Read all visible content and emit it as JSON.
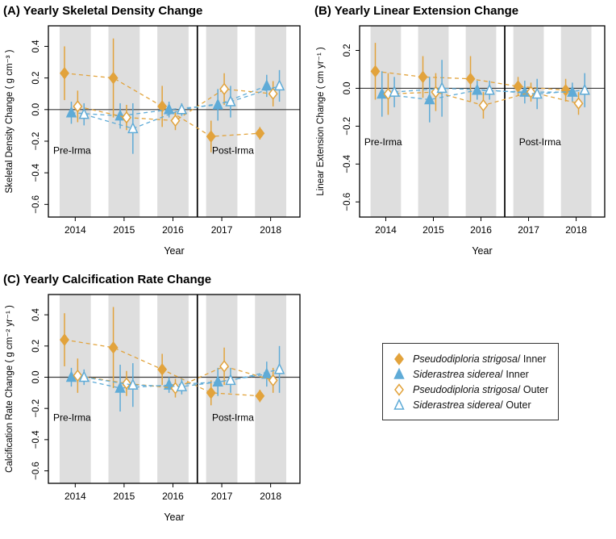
{
  "colors": {
    "orange": "#E2A33C",
    "blue": "#5FABD7",
    "band": "#DEDEDE",
    "zero_line": "#3A3A3A",
    "divider": "#000000",
    "box": "#000000"
  },
  "legend": {
    "items": [
      {
        "species": "Pseudodiploria strigosa",
        "group": "/ Inner",
        "shape": "diamond",
        "filled": true,
        "color": "#E2A33C"
      },
      {
        "species": "Siderastrea siderea",
        "group": "/ Inner",
        "shape": "triangle",
        "filled": true,
        "color": "#5FABD7"
      },
      {
        "species": "Pseudodiploria strigosa",
        "group": "/ Outer",
        "shape": "diamond",
        "filled": false,
        "color": "#E2A33C"
      },
      {
        "species": "Siderastrea siderea",
        "group": "/ Outer",
        "shape": "triangle",
        "filled": false,
        "color": "#5FABD7"
      }
    ]
  },
  "chart_data": [
    {
      "type": "scatter",
      "panel": "A",
      "title": "(A) Yearly Skeletal Density Change",
      "xlabel": "Year",
      "ylabel": "Skeletal Density Change ( g cm⁻³ )",
      "x_categories": [
        2014,
        2015,
        2016,
        2017,
        2018
      ],
      "xlim": [
        2013.45,
        2018.6
      ],
      "ylim": [
        -0.68,
        0.53
      ],
      "yticks": [
        -0.6,
        -0.4,
        -0.2,
        0.0,
        0.2,
        0.4
      ],
      "divider_x": 2016.5,
      "band_half_width": 0.32,
      "grid": false,
      "annotations": [
        {
          "text": "Pre-Irma",
          "x": 2013.55,
          "y": -0.28
        },
        {
          "text": "Post-Irma",
          "x": 2016.8,
          "y": -0.28
        }
      ],
      "series": [
        {
          "name": "Pseudodiploria strigosa/ Inner",
          "shape": "diamond",
          "filled": true,
          "color": "#E2A33C",
          "offset": -0.22,
          "values": [
            0.23,
            0.2,
            0.02,
            -0.17,
            -0.15
          ],
          "errors": [
            0.17,
            0.25,
            0.13,
            0.1,
            0.04
          ]
        },
        {
          "name": "Siderastrea siderea/ Inner",
          "shape": "triangle",
          "filled": true,
          "color": "#5FABD7",
          "offset": -0.08,
          "values": [
            -0.02,
            -0.04,
            0.0,
            0.03,
            0.15
          ],
          "errors": [
            0.07,
            0.08,
            0.05,
            0.1,
            0.07
          ]
        },
        {
          "name": "Pseudodiploria strigosa/ Outer",
          "shape": "diamond",
          "filled": false,
          "color": "#E2A33C",
          "offset": 0.05,
          "values": [
            0.02,
            -0.05,
            -0.07,
            0.13,
            0.1
          ],
          "errors": [
            0.1,
            0.08,
            0.06,
            0.1,
            0.08
          ]
        },
        {
          "name": "Siderastrea siderea/ Outer",
          "shape": "triangle",
          "filled": false,
          "color": "#5FABD7",
          "offset": 0.18,
          "values": [
            -0.03,
            -0.12,
            0.0,
            0.05,
            0.15
          ],
          "errors": [
            0.07,
            0.16,
            0.04,
            0.1,
            0.1
          ]
        }
      ]
    },
    {
      "type": "scatter",
      "panel": "B",
      "title": "(B) Yearly Linear Extension Change",
      "xlabel": "Year",
      "ylabel": "Linear Extension Change ( cm yr⁻¹ )",
      "x_categories": [
        2014,
        2015,
        2016,
        2017,
        2018
      ],
      "xlim": [
        2013.45,
        2018.6
      ],
      "ylim": [
        -0.68,
        0.33
      ],
      "yticks": [
        -0.6,
        -0.4,
        -0.2,
        0.0,
        0.2
      ],
      "divider_x": 2016.5,
      "band_half_width": 0.32,
      "grid": false,
      "annotations": [
        {
          "text": "Pre-Irma",
          "x": 2013.55,
          "y": -0.3
        },
        {
          "text": "Post-Irma",
          "x": 2016.8,
          "y": -0.3
        }
      ],
      "series": [
        {
          "name": "Pseudodiploria strigosa/ Inner",
          "shape": "diamond",
          "filled": true,
          "color": "#E2A33C",
          "offset": -0.22,
          "values": [
            0.09,
            0.06,
            0.05,
            0.01,
            -0.01
          ],
          "errors": [
            0.15,
            0.11,
            0.12,
            0.05,
            0.06
          ]
        },
        {
          "name": "Siderastrea siderea/ Inner",
          "shape": "triangle",
          "filled": true,
          "color": "#5FABD7",
          "offset": -0.08,
          "values": [
            -0.03,
            -0.06,
            -0.01,
            -0.02,
            -0.02
          ],
          "errors": [
            0.12,
            0.12,
            0.05,
            0.06,
            0.05
          ]
        },
        {
          "name": "Pseudodiploria strigosa/ Outer",
          "shape": "diamond",
          "filled": false,
          "color": "#E2A33C",
          "offset": 0.05,
          "values": [
            -0.03,
            -0.02,
            -0.09,
            -0.02,
            -0.08
          ],
          "errors": [
            0.11,
            0.1,
            0.07,
            0.05,
            0.06
          ]
        },
        {
          "name": "Siderastrea siderea/ Outer",
          "shape": "triangle",
          "filled": false,
          "color": "#5FABD7",
          "offset": 0.18,
          "values": [
            -0.02,
            0.0,
            -0.01,
            -0.03,
            -0.01
          ],
          "errors": [
            0.08,
            0.15,
            0.05,
            0.08,
            0.09
          ]
        }
      ]
    },
    {
      "type": "scatter",
      "panel": "C",
      "title": "(C) Yearly Calcification Rate Change",
      "xlabel": "Year",
      "ylabel": "Calcification Rate Change ( g cm⁻² yr⁻¹ )",
      "x_categories": [
        2014,
        2015,
        2016,
        2017,
        2018
      ],
      "xlim": [
        2013.45,
        2018.6
      ],
      "ylim": [
        -0.68,
        0.53
      ],
      "yticks": [
        -0.6,
        -0.4,
        -0.2,
        0.0,
        0.2,
        0.4
      ],
      "divider_x": 2016.5,
      "band_half_width": 0.32,
      "grid": false,
      "annotations": [
        {
          "text": "Pre-Irma",
          "x": 2013.55,
          "y": -0.28
        },
        {
          "text": "Post-Irma",
          "x": 2016.8,
          "y": -0.28
        }
      ],
      "series": [
        {
          "name": "Pseudodiploria strigosa/ Inner",
          "shape": "diamond",
          "filled": true,
          "color": "#E2A33C",
          "offset": -0.22,
          "values": [
            0.24,
            0.19,
            0.05,
            -0.1,
            -0.12
          ],
          "errors": [
            0.17,
            0.26,
            0.1,
            0.08,
            0.04
          ]
        },
        {
          "name": "Siderastrea siderea/ Inner",
          "shape": "triangle",
          "filled": true,
          "color": "#5FABD7",
          "offset": -0.08,
          "values": [
            0.0,
            -0.07,
            -0.05,
            -0.03,
            0.02
          ],
          "errors": [
            0.06,
            0.15,
            0.05,
            0.09,
            0.08
          ]
        },
        {
          "name": "Pseudodiploria strigosa/ Outer",
          "shape": "diamond",
          "filled": false,
          "color": "#E2A33C",
          "offset": 0.05,
          "values": [
            0.01,
            -0.04,
            -0.07,
            0.07,
            -0.02
          ],
          "errors": [
            0.11,
            0.08,
            0.06,
            0.12,
            0.08
          ]
        },
        {
          "name": "Siderastrea siderea/ Outer",
          "shape": "triangle",
          "filled": false,
          "color": "#5FABD7",
          "offset": 0.18,
          "values": [
            0.0,
            -0.05,
            -0.06,
            -0.02,
            0.05
          ],
          "errors": [
            0.05,
            0.14,
            0.05,
            0.08,
            0.15
          ]
        }
      ]
    }
  ]
}
